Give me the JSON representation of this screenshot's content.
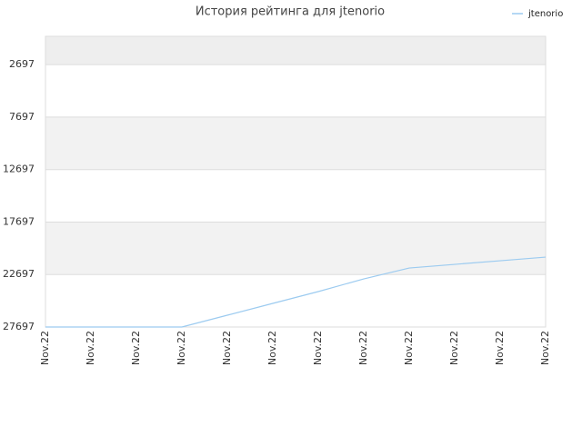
{
  "chart_data": {
    "type": "line",
    "title": "История рейтинга для jtenorio",
    "categories": [
      "Nov.22",
      "Nov.22",
      "Nov.22",
      "Nov.22",
      "Nov.22",
      "Nov.22",
      "Nov.22",
      "Nov.22",
      "Nov.22",
      "Nov.22",
      "Nov.22",
      "Nov.22"
    ],
    "series": [
      {
        "name": "jtenorio",
        "color": "#9ccbf0",
        "values": [
          27697,
          27697,
          27697,
          27697,
          26572,
          25448,
          24323,
          23112,
          22074,
          21728,
          21382,
          21036
        ]
      }
    ],
    "ylim": [
      27697,
      0
    ],
    "yticks": [
      2697,
      7697,
      12697,
      17697,
      22697,
      27697
    ],
    "grid": true,
    "legend": "top-right"
  }
}
